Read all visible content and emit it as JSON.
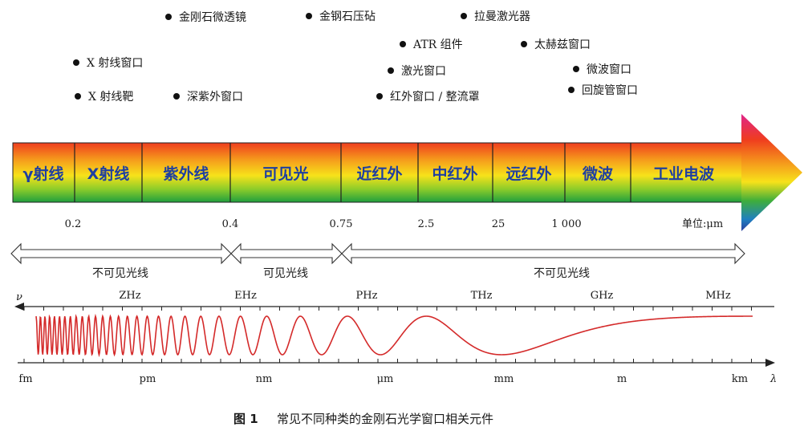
{
  "applications": [
    {
      "label": "金刚石微透镜"
    },
    {
      "label": "金钢石压砧"
    },
    {
      "label": "拉曼激光器"
    },
    {
      "label": "ATR 组件"
    },
    {
      "label": "太赫兹窗口"
    },
    {
      "label": "X 射线窗口"
    },
    {
      "label": "激光窗口"
    },
    {
      "label": "微波窗口"
    },
    {
      "label": "X 射线靶"
    },
    {
      "label": "深紫外窗口"
    },
    {
      "label": "红外窗口 / 整流罩"
    },
    {
      "label": "回旋管窗口"
    }
  ],
  "bands": [
    {
      "label": "γ射线"
    },
    {
      "label": "X射线"
    },
    {
      "label": "紫外线"
    },
    {
      "label": "可见光"
    },
    {
      "label": "近红外"
    },
    {
      "label": "中红外"
    },
    {
      "label": "远红外"
    },
    {
      "label": "微波"
    },
    {
      "label": "工业电波"
    }
  ],
  "wavelength_ticks": [
    "0.2",
    "0.4",
    "0.75",
    "2.5",
    "25",
    "1 000"
  ],
  "unit_label": "单位:μm",
  "ranges": [
    {
      "label": "不可见光线"
    },
    {
      "label": "可见光线"
    },
    {
      "label": "不可见光线"
    }
  ],
  "frequency_axis": {
    "symbol": "ν",
    "labels": [
      "ZHz",
      "EHz",
      "PHz",
      "THz",
      "GHz",
      "MHz"
    ]
  },
  "wavelength_axis": {
    "symbol": "λ",
    "labels": [
      "fm",
      "pm",
      "nm",
      "μm",
      "mm",
      "m",
      "km"
    ]
  },
  "caption": {
    "number": "图 1",
    "text": "常见不同种类的金刚石光学窗口相关元件"
  },
  "colors": {
    "band_text": "#1f3fa0",
    "wave": "#d42a2a",
    "gradient_top": "#ef3d1e",
    "gradient_mid": "#f7e21a",
    "gradient_bottom": "#1f9e3e"
  }
}
